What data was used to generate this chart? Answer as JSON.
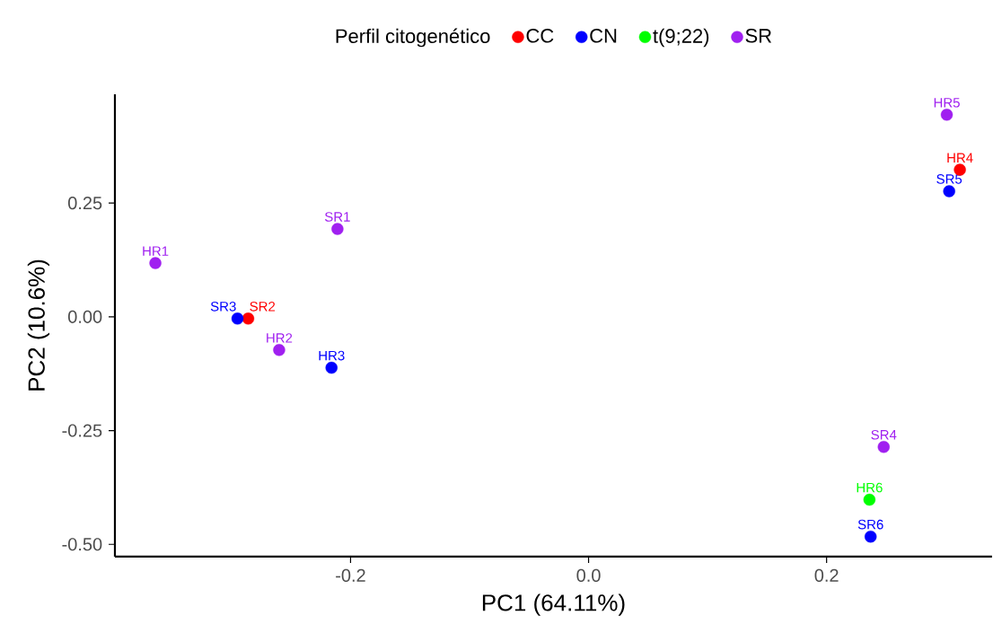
{
  "chart_data": {
    "type": "scatter",
    "xlabel": "PC1 (64.11%)",
    "ylabel": "PC2 (10.6%)",
    "legend_title": "Perfil citogenético",
    "legend": "top",
    "marker": "circle",
    "grid": false,
    "xlim": [
      -0.398,
      0.339
    ],
    "ylim": [
      -0.527,
      0.489
    ],
    "xticks": [
      -0.2,
      {
        "value": 0,
        "label": "0.0"
      },
      0.2
    ],
    "yticks": [
      {
        "value": -0.5,
        "label": "-0.50"
      },
      -0.25,
      {
        "value": 0,
        "label": "0.00"
      },
      0.25
    ],
    "series": [
      {
        "name": "CC",
        "color": "#ff0000",
        "x": [
          -0.286,
          0.312
        ],
        "values": [
          -0.004,
          0.323
        ]
      },
      {
        "name": "CN",
        "color": "#0000ff",
        "x": [
          -0.295,
          -0.216,
          0.303,
          0.237
        ],
        "values": [
          -0.004,
          -0.112,
          0.276,
          -0.483
        ]
      },
      {
        "name": "t(9;22)",
        "color": "#00ff00",
        "x": [
          0.236
        ],
        "values": [
          -0.402
        ]
      },
      {
        "name": "SR",
        "color": "#a020f0",
        "x": [
          -0.364,
          -0.26,
          -0.211,
          0.301,
          0.248
        ],
        "values": [
          0.118,
          -0.073,
          0.193,
          0.444,
          -0.286
        ]
      }
    ],
    "annotations": [
      {
        "text": "SR2",
        "x": -0.286,
        "y": -0.004
      },
      {
        "text": "HR4",
        "x": 0.312,
        "y": 0.323
      },
      {
        "text": "SR3",
        "x": -0.295,
        "y": -0.004
      },
      {
        "text": "HR3",
        "x": -0.216,
        "y": -0.112
      },
      {
        "text": "SR5",
        "x": 0.303,
        "y": 0.276
      },
      {
        "text": "SR6",
        "x": 0.237,
        "y": -0.483
      },
      {
        "text": "HR6",
        "x": 0.236,
        "y": -0.402
      },
      {
        "text": "HR1",
        "x": -0.364,
        "y": 0.118
      },
      {
        "text": "HR2",
        "x": -0.26,
        "y": -0.073
      },
      {
        "text": "SR1",
        "x": -0.211,
        "y": 0.193
      },
      {
        "text": "HR5",
        "x": 0.301,
        "y": 0.444
      },
      {
        "text": "SR4",
        "x": 0.248,
        "y": -0.286
      }
    ]
  }
}
